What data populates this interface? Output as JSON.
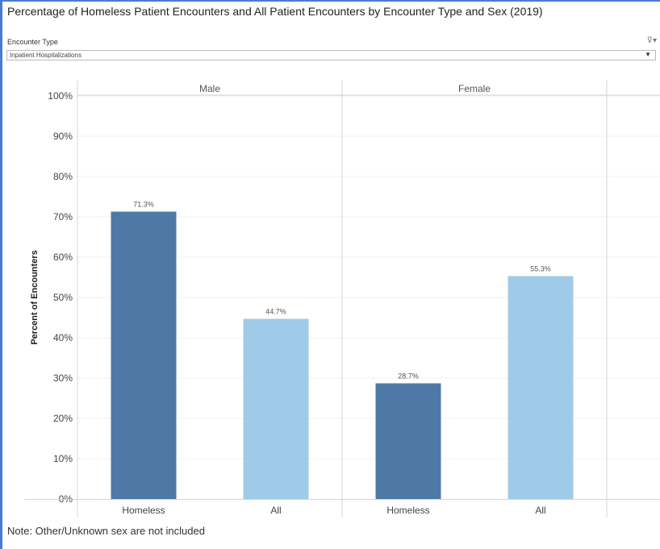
{
  "title": "Percentage of Homeless Patient Encounters and All Patient Encounters by Encounter Type and Sex (2019)",
  "filter": {
    "label": "Encounter Type",
    "selected": "Inpatient Hospitalizations",
    "clear_icon": "filter-clear-icon",
    "dropdown_icon": "chevron-down-icon"
  },
  "note": "Note: Other/Unknown sex are not included",
  "chart_data": {
    "type": "bar",
    "ylabel": "Percent of Encounters",
    "ylim": [
      0,
      100
    ],
    "yticks": [
      "0%",
      "10%",
      "20%",
      "30%",
      "40%",
      "50%",
      "60%",
      "70%",
      "80%",
      "90%",
      "100%"
    ],
    "panels": [
      {
        "name": "Male",
        "categories": [
          "Homeless",
          "All"
        ],
        "values": [
          71.3,
          44.7
        ],
        "labels": [
          "71.3%",
          "44.7%"
        ]
      },
      {
        "name": "Female",
        "categories": [
          "Homeless",
          "All"
        ],
        "values": [
          28.7,
          55.3
        ],
        "labels": [
          "28.7%",
          "55.3%"
        ]
      }
    ],
    "colors": {
      "Homeless": "#4e79a7",
      "All": "#a0cbe8"
    },
    "grid": true
  }
}
